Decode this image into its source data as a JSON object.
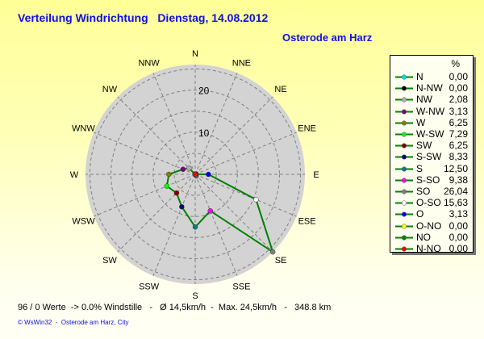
{
  "title": "Verteilung Windrichtung   Dienstag, 14.08.2012",
  "subtitle": "Osterode am Harz",
  "chart_data": {
    "type": "radar",
    "directions": [
      "N",
      "NNE",
      "NE",
      "ENE",
      "E",
      "ESE",
      "SE",
      "SSE",
      "S",
      "SSW",
      "SW",
      "WSW",
      "W",
      "WNW",
      "NW",
      "NNW"
    ],
    "ring_labels": [
      "0",
      "10",
      "20"
    ],
    "rmax": 26.04,
    "grid": true,
    "line_color": "#008000",
    "legend_header": "%",
    "legend_position": "right",
    "series": [
      {
        "name": "N",
        "value": "0,00",
        "v": 0,
        "angle": 0,
        "color": "#00e0e0"
      },
      {
        "name": "N-NW",
        "value": "0,00",
        "v": 0,
        "angle": 337.5,
        "color": "#000000"
      },
      {
        "name": "NW",
        "value": "2,08",
        "v": 2.08,
        "angle": 315,
        "color": "#b0b0b0"
      },
      {
        "name": "W-NW",
        "value": "3,13",
        "v": 3.13,
        "angle": 292.5,
        "color": "#800080"
      },
      {
        "name": "W",
        "value": "6,25",
        "v": 6.25,
        "angle": 270,
        "color": "#808000"
      },
      {
        "name": "W-SW",
        "value": "7,29",
        "v": 7.29,
        "angle": 247.5,
        "color": "#00ff00"
      },
      {
        "name": "SW",
        "value": "6,25",
        "v": 6.25,
        "angle": 225,
        "color": "#800000"
      },
      {
        "name": "S-SW",
        "value": "8,33",
        "v": 8.33,
        "angle": 202.5,
        "color": "#000080"
      },
      {
        "name": "S",
        "value": "12,50",
        "v": 12.5,
        "angle": 180,
        "color": "#008080"
      },
      {
        "name": "S-SO",
        "value": "9,38",
        "v": 9.38,
        "angle": 157.5,
        "color": "#ff00ff"
      },
      {
        "name": "SO",
        "value": "26,04",
        "v": 26.04,
        "angle": 135,
        "color": "#808080"
      },
      {
        "name": "O-SO",
        "value": "15,63",
        "v": 15.63,
        "angle": 112.5,
        "color": "#ffffff"
      },
      {
        "name": "O",
        "value": "3,13",
        "v": 3.13,
        "angle": 90,
        "color": "#0000ff"
      },
      {
        "name": "O-NO",
        "value": "0,00",
        "v": 0,
        "angle": 67.5,
        "color": "#ffff00"
      },
      {
        "name": "NO",
        "value": "0,00",
        "v": 0,
        "angle": 45,
        "color": "#008000"
      },
      {
        "name": "N-NO",
        "value": "0,00",
        "v": 0,
        "angle": 22.5,
        "color": "#ff0000"
      }
    ]
  },
  "stats": "96 / 0 Werte  -> 0.0% Windstille   -   Ø 14,5km/h  -  Max. 24,5km/h   -   348.8 km",
  "credit": "© WsWin32  -  Osterode am Harz, City"
}
